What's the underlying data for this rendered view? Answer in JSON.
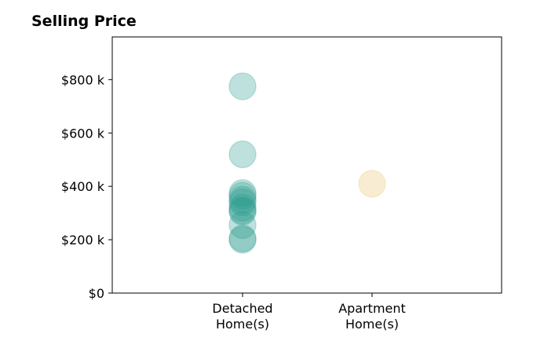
{
  "chart_data": {
    "type": "scatter",
    "title": "Selling Price",
    "xlabel": "",
    "ylabel": "",
    "categories": [
      "Detached\nHome(s)",
      "Apartment\nHome(s)"
    ],
    "ylim": [
      0,
      960000
    ],
    "y_ticks": [
      {
        "value": 0,
        "label": "$0"
      },
      {
        "value": 200000,
        "label": "$200 k"
      },
      {
        "value": 400000,
        "label": "$400 k"
      },
      {
        "value": 600000,
        "label": "$600 k"
      },
      {
        "value": 800000,
        "label": "$800 k"
      }
    ],
    "grid": false,
    "legend": "none",
    "series": [
      {
        "category": "Detached\nHome(s)",
        "color": "#2a9d8f",
        "values": [
          775000,
          520000,
          375000,
          365000,
          350000,
          340000,
          320000,
          310000,
          305000,
          255000,
          205000,
          200000
        ]
      },
      {
        "category": "Apartment\nHome(s)",
        "color": "#e9c46a",
        "values": [
          410000
        ]
      }
    ]
  }
}
